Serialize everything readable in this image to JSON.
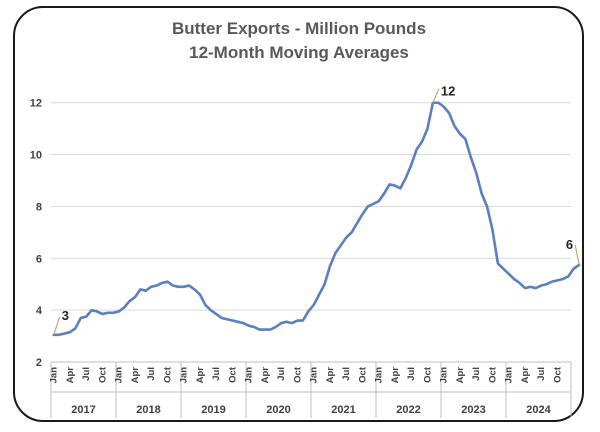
{
  "chart_data": {
    "type": "line",
    "title": "Butter Exports - Million Pounds",
    "subtitle": "12-Month Moving Averages",
    "xlabel": "",
    "ylabel": "",
    "ylim": [
      2,
      12.8
    ],
    "yticks": [
      "2",
      "4",
      "6",
      "8",
      "10",
      "12"
    ],
    "grid": true,
    "legend": "none",
    "line_color": "#5b7fbf",
    "grid_color": "#d9d9d9",
    "leader_color": "#c8a878",
    "month_labels": [
      "Jan",
      "Apr",
      "Jul",
      "Oct"
    ],
    "years": [
      "2017",
      "2018",
      "2019",
      "2020",
      "2021",
      "2022",
      "2023",
      "2024"
    ],
    "series": [
      {
        "values": [
          3.05,
          3.05,
          3.1,
          3.15,
          3.3,
          3.7,
          3.75,
          4.0,
          3.95,
          3.85,
          3.9,
          3.9,
          3.95,
          4.1,
          4.35,
          4.5,
          4.8,
          4.75,
          4.9,
          4.95,
          5.05,
          5.1,
          4.95,
          4.9,
          4.9,
          4.95,
          4.8,
          4.6,
          4.2,
          4.0,
          3.85,
          3.7,
          3.65,
          3.6,
          3.55,
          3.5,
          3.4,
          3.35,
          3.25,
          3.25,
          3.25,
          3.35,
          3.5,
          3.55,
          3.5,
          3.6,
          3.6,
          3.95,
          4.2,
          4.6,
          5.0,
          5.7,
          6.2,
          6.5,
          6.8,
          7.0,
          7.35,
          7.7,
          8.0,
          8.1,
          8.2,
          8.5,
          8.85,
          8.8,
          8.7,
          9.1,
          9.6,
          10.2,
          10.5,
          11.0,
          12.0,
          12.0,
          11.85,
          11.6,
          11.1,
          10.8,
          10.6,
          9.9,
          9.3,
          8.5,
          8.0,
          7.1,
          5.8,
          5.6,
          5.4,
          5.2,
          5.05,
          4.85,
          4.9,
          4.85,
          4.95,
          5.0,
          5.1,
          5.15,
          5.2,
          5.3,
          5.6,
          5.75
        ]
      }
    ],
    "annotations": [
      {
        "text": "3",
        "index": 0
      },
      {
        "text": "12",
        "index": 70
      },
      {
        "text": "6",
        "index": 97
      }
    ]
  }
}
